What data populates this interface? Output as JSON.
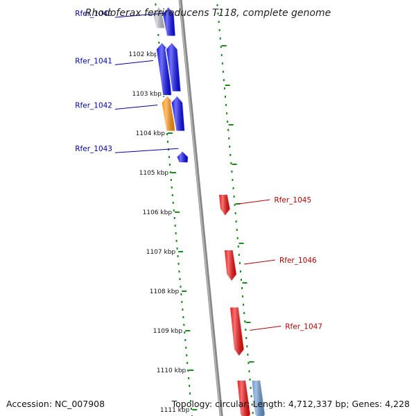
{
  "title": "Rhodoferax ferrireducens T118, complete genome",
  "accession_text": "Accession: NC_007908",
  "summary_text": "Topology: circular; Length: 4,712,337 bp; Genes: 4,228",
  "colors": {
    "forward_gene": "#0000ee",
    "reverse_gene": "#ee0000",
    "highlight_gene": "#ff8c00",
    "pale_gene": "#b8b8c8",
    "steel_gene": "#5b8fc8",
    "forward_label": "#00009a",
    "reverse_label": "#b00000",
    "tick": "#1a8a1a",
    "backbone": "#888888"
  },
  "position_ticks": [
    {
      "label": "1102 kbp",
      "kbp": 1102
    },
    {
      "label": "1103 kbp",
      "kbp": 1103
    },
    {
      "label": "1104 kbp",
      "kbp": 1104
    },
    {
      "label": "1105 kbp",
      "kbp": 1105
    },
    {
      "label": "1106 kbp",
      "kbp": 1106
    },
    {
      "label": "1107 kbp",
      "kbp": 1107
    },
    {
      "label": "1108 kbp",
      "kbp": 1108
    },
    {
      "label": "1109 kbp",
      "kbp": 1109
    },
    {
      "label": "1110 kbp",
      "kbp": 1110
    },
    {
      "label": "1111 kbp",
      "kbp": 1111
    }
  ],
  "genes": [
    {
      "strand": "+",
      "lane": 2,
      "start_kbp": 1100.8,
      "end_kbp": 1101.35,
      "color": "pale_gene"
    },
    {
      "strand": "+",
      "lane": 1,
      "start_kbp": 1100.8,
      "end_kbp": 1101.55,
      "color": "forward_gene",
      "label": "Rfer_1040"
    },
    {
      "strand": "+",
      "lane": 2,
      "start_kbp": 1101.7,
      "end_kbp": 1103.05,
      "color": "forward_gene",
      "label": "Rfer_1041"
    },
    {
      "strand": "+",
      "lane": 1,
      "start_kbp": 1101.7,
      "end_kbp": 1102.95,
      "color": "forward_gene"
    },
    {
      "strand": "+",
      "lane": 2,
      "start_kbp": 1103.05,
      "end_kbp": 1103.95,
      "color": "highlight_gene",
      "label": "Rfer_1042"
    },
    {
      "strand": "+",
      "lane": 1,
      "start_kbp": 1103.05,
      "end_kbp": 1103.95,
      "color": "forward_gene"
    },
    {
      "strand": "+",
      "lane": 1,
      "start_kbp": 1104.45,
      "end_kbp": 1104.75,
      "color": "forward_gene",
      "label": "Rfer_1043"
    },
    {
      "strand": "-",
      "lane": 1,
      "start_kbp": 1105.55,
      "end_kbp": 1106.1,
      "color": "reverse_gene",
      "label": "Rfer_1045"
    },
    {
      "strand": "-",
      "lane": 1,
      "start_kbp": 1106.95,
      "end_kbp": 1107.75,
      "color": "reverse_gene",
      "label": "Rfer_1046"
    },
    {
      "strand": "-",
      "lane": 1,
      "start_kbp": 1108.4,
      "end_kbp": 1109.65,
      "color": "reverse_gene",
      "label": "Rfer_1047"
    },
    {
      "strand": "-",
      "lane": 1,
      "start_kbp": 1110.25,
      "end_kbp": 1111.3,
      "color": "reverse_gene"
    },
    {
      "strand": "-",
      "lane": 2,
      "start_kbp": 1110.25,
      "end_kbp": 1111.3,
      "color": "steel_gene"
    }
  ]
}
